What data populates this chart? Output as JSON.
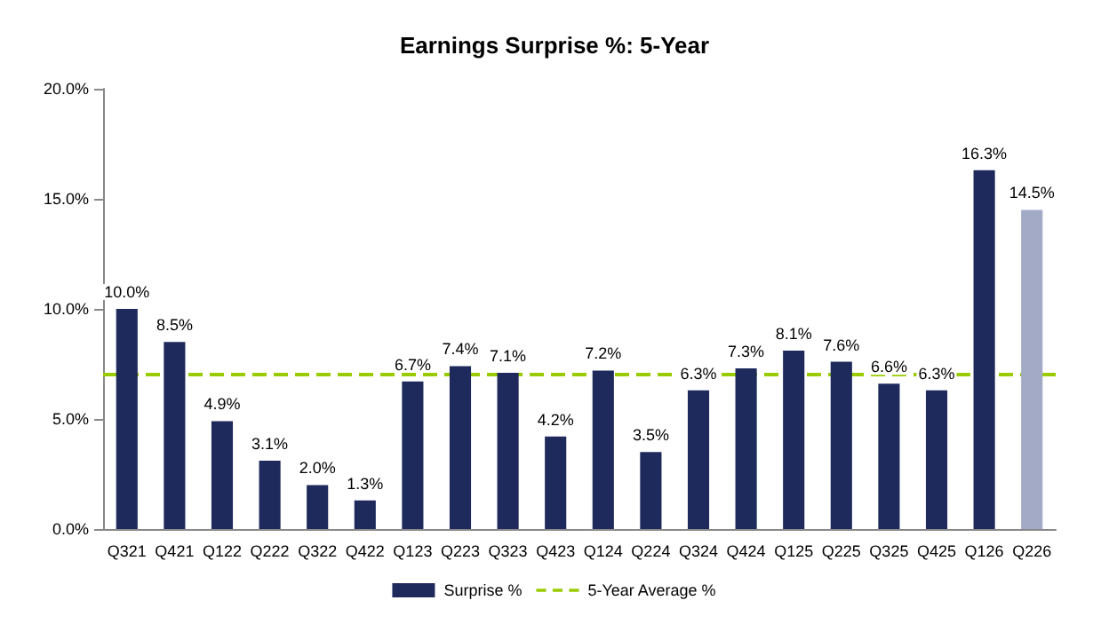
{
  "chart_data": {
    "type": "bar",
    "title": "Earnings Surprise %: 5-Year",
    "categories": [
      "Q321",
      "Q421",
      "Q122",
      "Q222",
      "Q322",
      "Q422",
      "Q123",
      "Q223",
      "Q323",
      "Q423",
      "Q124",
      "Q224",
      "Q324",
      "Q424",
      "Q125",
      "Q225",
      "Q325",
      "Q425",
      "Q126",
      "Q226"
    ],
    "series": [
      {
        "name": "Surprise %",
        "color": "#1f2a5c",
        "colors": [
          "#1f2a5c",
          "#1f2a5c",
          "#1f2a5c",
          "#1f2a5c",
          "#1f2a5c",
          "#1f2a5c",
          "#1f2a5c",
          "#1f2a5c",
          "#1f2a5c",
          "#1f2a5c",
          "#1f2a5c",
          "#1f2a5c",
          "#1f2a5c",
          "#1f2a5c",
          "#1f2a5c",
          "#1f2a5c",
          "#1f2a5c",
          "#1f2a5c",
          "#1f2a5c",
          "#a3aac6"
        ],
        "values": [
          10.0,
          8.5,
          4.9,
          3.1,
          2.0,
          1.3,
          6.7,
          7.4,
          7.1,
          4.2,
          7.2,
          3.5,
          6.3,
          7.3,
          8.1,
          7.6,
          6.6,
          6.3,
          16.3,
          14.5
        ],
        "value_labels": [
          "10.0%",
          "8.5%",
          "4.9%",
          "3.1%",
          "2.0%",
          "1.3%",
          "6.7%",
          "7.4%",
          "7.1%",
          "4.2%",
          "7.2%",
          "3.5%",
          "6.3%",
          "7.3%",
          "8.1%",
          "7.6%",
          "6.6%",
          "6.3%",
          "16.3%",
          "14.5%"
        ]
      }
    ],
    "ylim": [
      0,
      20
    ],
    "yticks": [
      {
        "value": 0,
        "label": "0.0%"
      },
      {
        "value": 5,
        "label": "5.0%"
      },
      {
        "value": 10,
        "label": "10.0%"
      },
      {
        "value": 15,
        "label": "15.0%"
      },
      {
        "value": 20,
        "label": "20.0%"
      }
    ],
    "ref_lines": [
      {
        "axis": "y",
        "value": 7.0,
        "label": "5-Year Average %",
        "color": "#99cc00",
        "line_style": "dashed"
      }
    ],
    "grid": false,
    "legend": "bottom"
  }
}
